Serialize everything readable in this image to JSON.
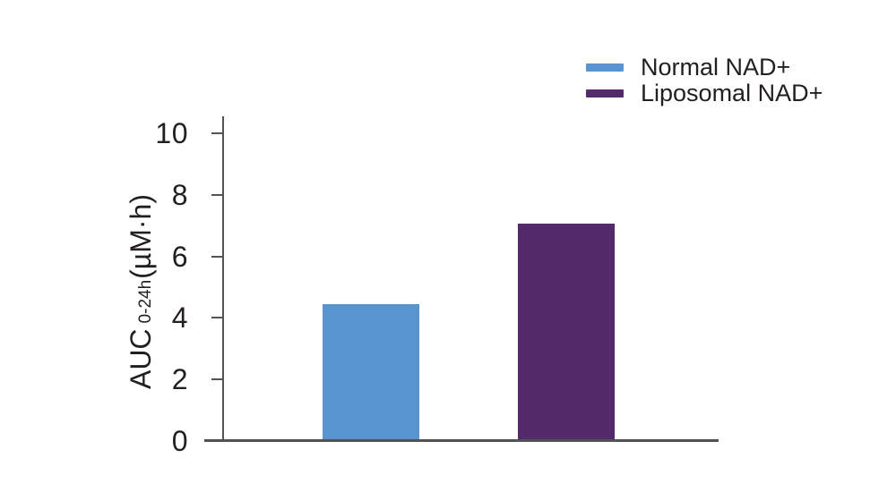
{
  "chart_data": {
    "type": "bar",
    "title": "",
    "ylabel": {
      "main": "AUC",
      "sub": "0-24h",
      "units": "(µM·h)"
    },
    "ylim": [
      0,
      10
    ],
    "yticks": [
      0,
      2,
      4,
      6,
      8,
      10
    ],
    "categories": [
      "Normal NAD+",
      "Liposomal NAD+"
    ],
    "series": [
      {
        "name": "Normal NAD+",
        "value": 4.45,
        "color": "#5894cf"
      },
      {
        "name": "Liposomal NAD+",
        "value": 7.05,
        "color": "#542a6b"
      }
    ],
    "legend": {
      "position": "top-right",
      "entries": [
        "Normal NAD+",
        "Liposomal NAD+"
      ]
    },
    "grid": false,
    "axis_color": "#515254",
    "text_color": "#231f20",
    "background": "#ffffff"
  }
}
